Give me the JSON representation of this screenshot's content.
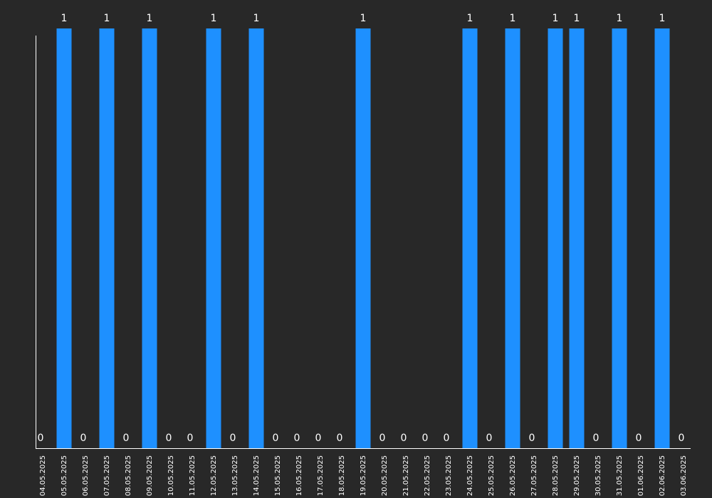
{
  "chart_data": {
    "type": "bar",
    "categories": [
      "04.05.2025",
      "05.05.2025",
      "06.05.2025",
      "07.05.2025",
      "08.05.2025",
      "09.05.2025",
      "10.05.2025",
      "11.05.2025",
      "12.05.2025",
      "13.05.2025",
      "14.05.2025",
      "15.05.2025",
      "16.05.2025",
      "17.05.2025",
      "18.05.2025",
      "19.05.2025",
      "20.05.2025",
      "21.05.2025",
      "22.05.2025",
      "23.05.2025",
      "24.05.2025",
      "25.05.2025",
      "26.05.2025",
      "27.05.2025",
      "28.05.2025",
      "29.05.2025",
      "30.05.2025",
      "31.05.2025",
      "01.06.2025",
      "02.06.2025",
      "03.06.2025"
    ],
    "values": [
      0,
      1,
      0,
      1,
      0,
      1,
      0,
      0,
      1,
      0,
      1,
      0,
      0,
      0,
      0,
      1,
      0,
      0,
      0,
      0,
      1,
      0,
      1,
      0,
      1,
      1,
      0,
      1,
      0,
      1,
      0
    ],
    "title": "",
    "xlabel": "",
    "ylabel": "",
    "ylim": [
      0,
      1
    ],
    "grid": false,
    "legend": "none",
    "colors": {
      "background": "#282828",
      "bar": "#1e90ff",
      "text": "#ffffff",
      "axis": "#ffffff"
    }
  }
}
